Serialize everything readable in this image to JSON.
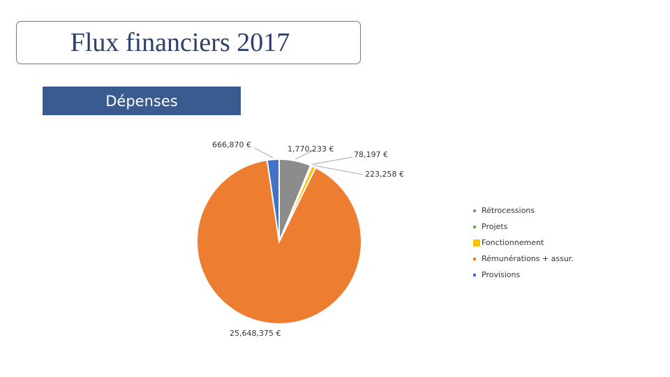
{
  "slide": {
    "title": "Flux financiers 2017",
    "section": "Dépenses"
  },
  "chart_data": {
    "type": "pie",
    "categories": [
      "Rétrocessions",
      "Projets",
      "Fonctionnement",
      "Rémunérations + assur.",
      "Provisions"
    ],
    "values": [
      1770233,
      78197,
      223258,
      25648375,
      666870
    ],
    "labels": [
      "1,770,233 €",
      "78,197 €",
      "223,258 €",
      "25,648,375 €",
      "666,870 €"
    ],
    "colors": [
      "#8c8c8c",
      "#6aa84f",
      "#ffc000",
      "#ed7d31",
      "#4472c4"
    ],
    "legend_position": "right",
    "start_angle_deg": 0,
    "direction": "clockwise"
  },
  "legend": {
    "items": [
      {
        "label": "Rétrocessions",
        "color": "#8c8c8c"
      },
      {
        "label": "Projets",
        "color": "#6aa84f"
      },
      {
        "label": "Fonctionnement",
        "color": "#ffc000"
      },
      {
        "label": "Rémunérations + assur.",
        "color": "#ed7d31"
      },
      {
        "label": "Provisions",
        "color": "#4472c4"
      }
    ]
  }
}
